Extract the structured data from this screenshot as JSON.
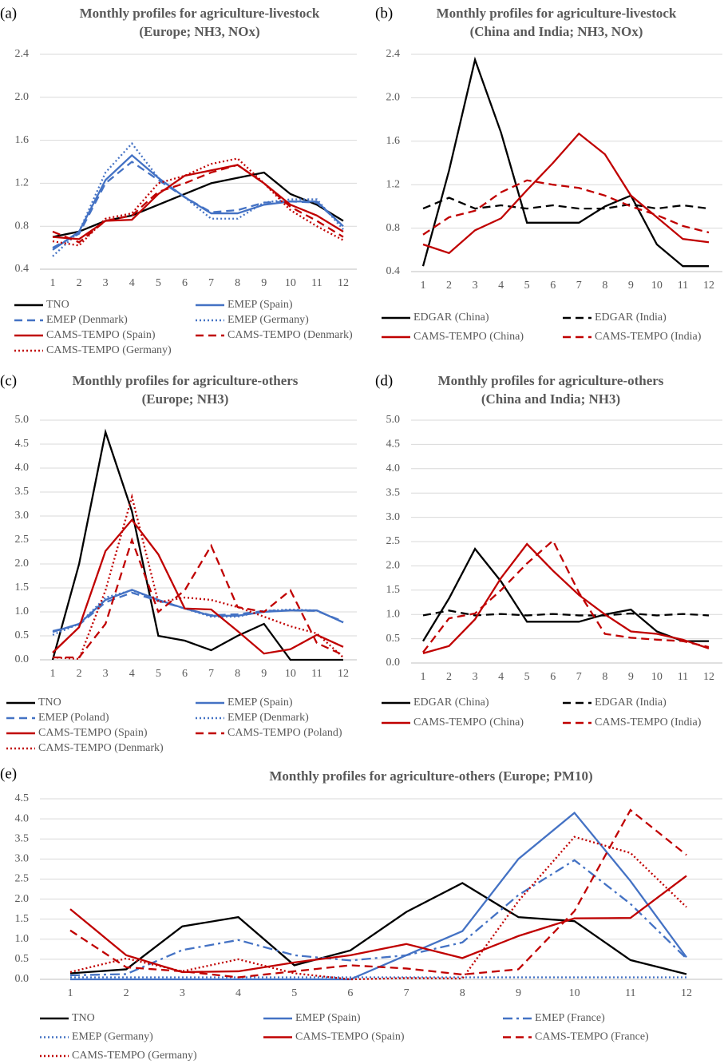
{
  "chart_data": [
    {
      "type": "line",
      "label": "(a)",
      "title": [
        "Monthly profiles for agriculture-livestock",
        "(Europe; NH3, NOx)"
      ],
      "categories": [
        1,
        2,
        3,
        4,
        5,
        6,
        7,
        8,
        9,
        10,
        11,
        12
      ],
      "ylim": [
        0.4,
        2.4
      ],
      "yticks": [
        0.4,
        0.8,
        1.2,
        1.6,
        {
          "value": 2,
          "label": "2.0"
        },
        2.4
      ],
      "grid": true,
      "series": [
        {
          "name": "TNO",
          "color": "#000000",
          "dash": "solid",
          "values": [
            0.7,
            0.75,
            0.85,
            0.9,
            1.0,
            1.1,
            1.2,
            1.25,
            1.3,
            1.1,
            1.0,
            0.85
          ]
        },
        {
          "name": "EMEP (Spain)",
          "color": "#4472c4",
          "dash": "solid",
          "values": [
            0.58,
            0.75,
            1.23,
            1.46,
            1.25,
            1.07,
            0.92,
            0.92,
            1.0,
            1.03,
            1.03,
            0.8
          ]
        },
        {
          "name": "EMEP (Denmark)",
          "color": "#4472c4",
          "dash": "dashed",
          "values": [
            0.6,
            0.73,
            1.2,
            1.4,
            1.23,
            1.07,
            0.93,
            0.95,
            1.02,
            1.03,
            1.02,
            0.8
          ]
        },
        {
          "name": "EMEP (Germany)",
          "color": "#4472c4",
          "dash": "dotted",
          "values": [
            0.52,
            0.75,
            1.3,
            1.57,
            1.25,
            1.07,
            0.87,
            0.87,
            1.02,
            1.05,
            1.05,
            0.77
          ]
        },
        {
          "name": "CAMS-TEMPO (Spain)",
          "color": "#c00000",
          "dash": "solid",
          "values": [
            0.7,
            0.68,
            0.85,
            0.86,
            1.1,
            1.27,
            1.32,
            1.37,
            1.2,
            1.0,
            0.9,
            0.75
          ]
        },
        {
          "name": "CAMS-TEMPO (Denmark)",
          "color": "#c00000",
          "dash": "dashed",
          "values": [
            0.75,
            0.65,
            0.85,
            0.9,
            1.12,
            1.2,
            1.3,
            1.37,
            1.2,
            0.98,
            0.85,
            0.7
          ]
        },
        {
          "name": "CAMS-TEMPO (Germany)",
          "color": "#c00000",
          "dash": "dotted",
          "values": [
            0.66,
            0.62,
            0.87,
            0.92,
            1.2,
            1.27,
            1.38,
            1.43,
            1.2,
            0.95,
            0.8,
            0.67
          ]
        }
      ]
    },
    {
      "type": "line",
      "label": "(b)",
      "title": [
        "Monthly profiles for agriculture-livestock",
        "(China and India; NH3, NOx)"
      ],
      "categories": [
        1,
        2,
        3,
        4,
        5,
        6,
        7,
        8,
        9,
        10,
        11,
        12
      ],
      "ylim": [
        0.4,
        2.4
      ],
      "yticks": [
        0.4,
        0.8,
        1.2,
        1.6,
        {
          "value": 2,
          "label": "2.0"
        },
        2.4
      ],
      "grid": true,
      "series": [
        {
          "name": "EDGAR (China)",
          "color": "#000000",
          "dash": "solid",
          "values": [
            0.45,
            1.33,
            2.35,
            1.68,
            0.85,
            0.85,
            0.85,
            1.0,
            1.1,
            0.65,
            0.45,
            0.45
          ]
        },
        {
          "name": "EDGAR (India)",
          "color": "#000000",
          "dash": "dashed",
          "values": [
            0.98,
            1.08,
            0.98,
            1.01,
            0.98,
            1.01,
            0.98,
            0.98,
            1.02,
            0.98,
            1.01,
            0.98
          ]
        },
        {
          "name": "CAMS-TEMPO (China)",
          "color": "#c00000",
          "dash": "solid",
          "values": [
            0.65,
            0.57,
            0.78,
            0.89,
            1.15,
            1.4,
            1.67,
            1.48,
            1.1,
            0.9,
            0.7,
            0.67
          ]
        },
        {
          "name": "CAMS-TEMPO (India)",
          "color": "#c00000",
          "dash": "dashed",
          "values": [
            0.74,
            0.9,
            0.96,
            1.13,
            1.24,
            1.2,
            1.17,
            1.1,
            1.0,
            0.92,
            0.82,
            0.76
          ]
        }
      ]
    },
    {
      "type": "line",
      "label": "(c)",
      "title": [
        "Monthly profiles for agriculture-others",
        "(Europe; NH3)"
      ],
      "categories": [
        1,
        2,
        3,
        4,
        5,
        6,
        7,
        8,
        9,
        10,
        11,
        12
      ],
      "ylim": [
        0,
        5
      ],
      "yticks": [
        {
          "value": 0,
          "label": "0.0"
        },
        0.5,
        {
          "value": 1,
          "label": "1.0"
        },
        1.5,
        {
          "value": 2,
          "label": "2.0"
        },
        2.5,
        {
          "value": 3,
          "label": "3.0"
        },
        3.5,
        {
          "value": 4,
          "label": "4.0"
        },
        4.5,
        {
          "value": 5,
          "label": "5.0"
        }
      ],
      "grid": true,
      "series": [
        {
          "name": "TNO",
          "color": "#000000",
          "dash": "solid",
          "values": [
            0,
            2.0,
            4.75,
            3.1,
            0.5,
            0.4,
            0.2,
            0.5,
            0.75,
            0,
            0,
            0
          ]
        },
        {
          "name": "EMEP (Spain)",
          "color": "#4472c4",
          "dash": "solid",
          "values": [
            0.58,
            0.75,
            1.25,
            1.46,
            1.25,
            1.07,
            0.92,
            0.92,
            1.0,
            1.03,
            1.03,
            0.78
          ]
        },
        {
          "name": "EMEP (Poland)",
          "color": "#4472c4",
          "dash": "dashed",
          "values": [
            0.6,
            0.73,
            1.2,
            1.4,
            1.23,
            1.07,
            0.93,
            0.95,
            1.02,
            1.03,
            1.02,
            0.8
          ]
        },
        {
          "name": "EMEP (Denmark)",
          "color": "#4472c4",
          "dash": "dotted",
          "values": [
            0.52,
            0.75,
            1.3,
            1.45,
            1.25,
            1.07,
            0.9,
            0.9,
            1.02,
            1.05,
            1.03,
            0.78
          ]
        },
        {
          "name": "CAMS-TEMPO (Spain)",
          "color": "#c00000",
          "dash": "solid",
          "values": [
            0.15,
            0.68,
            2.27,
            2.92,
            2.2,
            1.07,
            1.05,
            0.6,
            0.13,
            0.22,
            0.52,
            0.27
          ]
        },
        {
          "name": "CAMS-TEMPO (Poland)",
          "color": "#c00000",
          "dash": "dashed",
          "values": [
            0.05,
            0.05,
            0.75,
            2.5,
            1.0,
            1.45,
            2.38,
            1.1,
            1.0,
            1.45,
            0.35,
            0.1
          ]
        },
        {
          "name": "CAMS-TEMPO (Denmark)",
          "color": "#c00000",
          "dash": "dotted",
          "values": [
            0.05,
            0.02,
            1.45,
            3.4,
            1.2,
            1.3,
            1.25,
            1.1,
            0.9,
            0.7,
            0.55,
            0.05
          ]
        }
      ]
    },
    {
      "type": "line",
      "label": "(d)",
      "title": [
        "Monthly profiles for agriculture-others",
        "(China and India; NH3)"
      ],
      "categories": [
        1,
        2,
        3,
        4,
        5,
        6,
        7,
        8,
        9,
        10,
        11,
        12
      ],
      "ylim": [
        0,
        5
      ],
      "yticks": [
        {
          "value": 0,
          "label": "0.0"
        },
        0.5,
        {
          "value": 1,
          "label": "1.0"
        },
        1.5,
        {
          "value": 2,
          "label": "2.0"
        },
        2.5,
        {
          "value": 3,
          "label": "3.0"
        },
        3.5,
        {
          "value": 4,
          "label": "4.0"
        },
        4.5,
        {
          "value": 5,
          "label": "5.0"
        }
      ],
      "grid": true,
      "series": [
        {
          "name": "EDGAR (China)",
          "color": "#000000",
          "dash": "solid",
          "values": [
            0.45,
            1.33,
            2.35,
            1.68,
            0.85,
            0.85,
            0.85,
            1.0,
            1.1,
            0.65,
            0.45,
            0.45
          ]
        },
        {
          "name": "EDGAR (India)",
          "color": "#000000",
          "dash": "dashed",
          "values": [
            0.98,
            1.08,
            0.98,
            1.01,
            0.98,
            1.01,
            0.98,
            0.98,
            1.02,
            0.98,
            1.01,
            0.98
          ]
        },
        {
          "name": "CAMS-TEMPO (China)",
          "color": "#c00000",
          "dash": "solid",
          "values": [
            0.2,
            0.35,
            0.9,
            1.75,
            2.45,
            1.9,
            1.4,
            1.0,
            0.65,
            0.6,
            0.48,
            0.3
          ]
        },
        {
          "name": "CAMS-TEMPO (India)",
          "color": "#c00000",
          "dash": "dashed",
          "values": [
            0.22,
            0.92,
            1.02,
            1.5,
            2.05,
            2.52,
            1.45,
            0.6,
            0.52,
            0.48,
            0.45,
            0.33
          ]
        }
      ]
    },
    {
      "type": "line",
      "label": "(e)",
      "title": [
        "Monthly profiles for agriculture-others (Europe; PM10)"
      ],
      "categories": [
        1,
        2,
        3,
        4,
        5,
        6,
        7,
        8,
        9,
        10,
        11,
        12
      ],
      "ylim": [
        0,
        4.5
      ],
      "yticks": [
        {
          "value": 0,
          "label": "0.0"
        },
        0.5,
        {
          "value": 1,
          "label": "1.0"
        },
        1.5,
        {
          "value": 2,
          "label": "2.0"
        },
        2.5,
        {
          "value": 3,
          "label": "3.0"
        },
        3.5,
        {
          "value": 4,
          "label": "4.0"
        },
        4.5
      ],
      "grid": true,
      "series": [
        {
          "name": "TNO",
          "color": "#000000",
          "dash": "solid",
          "values": [
            0.15,
            0.25,
            1.32,
            1.55,
            0.35,
            0.72,
            1.68,
            2.4,
            1.55,
            1.45,
            0.48,
            0.13
          ]
        },
        {
          "name": "EMEP (Spain)",
          "color": "#4472c4",
          "dash": "solid",
          "values": [
            0,
            0,
            0,
            0,
            0,
            0,
            0.6,
            1.2,
            3.0,
            4.15,
            2.45,
            0.55
          ]
        },
        {
          "name": "EMEP (France)",
          "color": "#4472c4",
          "dash": "dashdot",
          "values": [
            0.1,
            0.13,
            0.73,
            0.98,
            0.6,
            0.47,
            0.6,
            0.92,
            2.1,
            2.97,
            1.88,
            0.52
          ]
        },
        {
          "name": "EMEP (Germany)",
          "color": "#4472c4",
          "dash": "dotted",
          "values": [
            0.05,
            0.05,
            0.05,
            0.05,
            0.05,
            0.05,
            0.05,
            0.05,
            0.05,
            0.05,
            0.05,
            0.05
          ]
        },
        {
          "name": "CAMS-TEMPO (Spain)",
          "color": "#c00000",
          "dash": "solid",
          "values": [
            1.75,
            0.6,
            0.18,
            0.2,
            0.42,
            0.6,
            0.88,
            0.53,
            1.08,
            1.52,
            1.53,
            2.58
          ]
        },
        {
          "name": "CAMS-TEMPO (France)",
          "color": "#c00000",
          "dash": "dashed",
          "values": [
            1.22,
            0.3,
            0.2,
            0.05,
            0.2,
            0.35,
            0.27,
            0.12,
            0.25,
            1.7,
            4.22,
            3.1
          ]
        },
        {
          "name": "CAMS-TEMPO (Germany)",
          "color": "#c00000",
          "dash": "dotted",
          "values": [
            0.18,
            0.52,
            0.2,
            0.5,
            0.15,
            0.0,
            0.03,
            0.02,
            1.95,
            3.55,
            3.15,
            1.8
          ]
        }
      ]
    }
  ]
}
